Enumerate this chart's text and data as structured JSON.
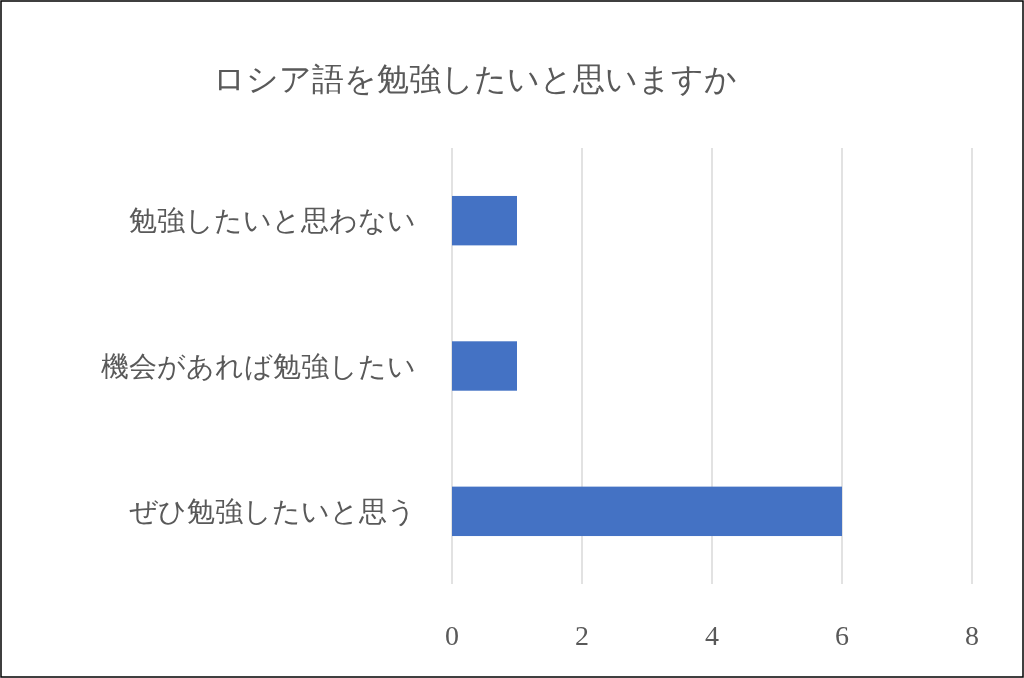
{
  "chart_data": {
    "type": "bar",
    "title": "ロシア語を勉強したいと思いますか",
    "orientation": "horizontal",
    "categories": [
      "勉強したいと思わない",
      "機会があれば勉強したい",
      "ぜひ勉強したいと思う"
    ],
    "values": [
      1,
      1,
      6
    ],
    "color": "#4472c4",
    "xlim": [
      0,
      8
    ],
    "xticks": [
      0,
      2,
      4,
      6,
      8
    ],
    "grid": "x"
  }
}
